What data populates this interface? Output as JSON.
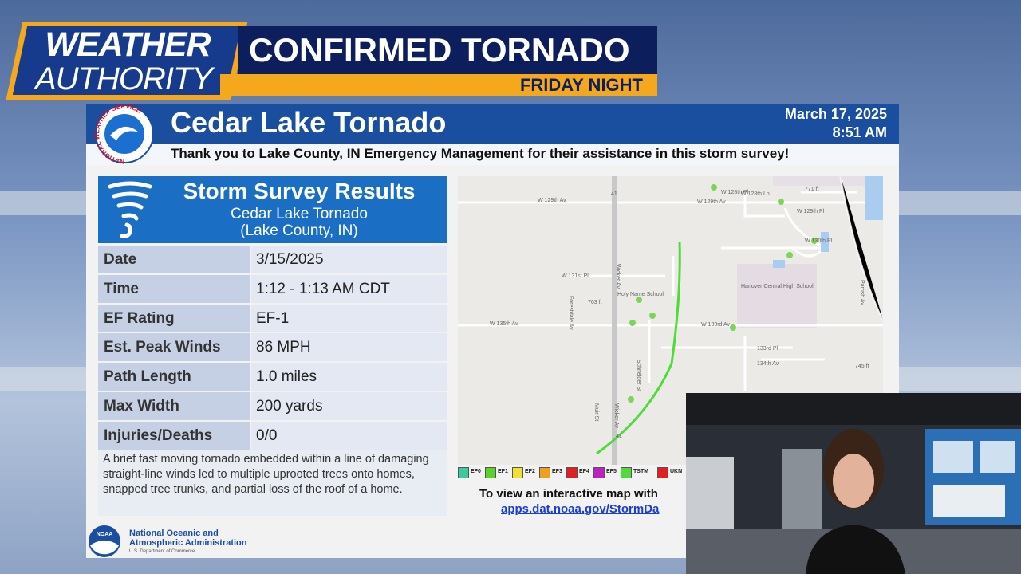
{
  "banner": {
    "brand_top": "WEATHER",
    "brand_bottom": "AUTHORITY",
    "headline": "CONFIRMED TORNADO",
    "subline": "FRIDAY NIGHT"
  },
  "header": {
    "seal": "NATIONAL WEATHER SERVICE",
    "title": "Cedar Lake Tornado",
    "date": "March 17, 2025",
    "time": "8:51 AM",
    "thanks": "Thank you to Lake County, IN Emergency Management for their assistance in this storm survey!"
  },
  "survey": {
    "title": "Storm Survey Results",
    "name": "Cedar Lake Tornado",
    "county": "(Lake County, IN)",
    "rows": [
      [
        "Date",
        "3/15/2025"
      ],
      [
        "Time",
        "1:12 - 1:13 AM CDT"
      ],
      [
        "EF Rating",
        "EF-1"
      ],
      [
        "Est. Peak Winds",
        "86 MPH"
      ],
      [
        "Path Length",
        "1.0 miles"
      ],
      [
        "Max Width",
        "200 yards"
      ],
      [
        "Injuries/Deaths",
        "0/0"
      ]
    ],
    "description": "A brief fast moving tornado embedded within a line of damaging straight-line winds led to multiple uprooted trees onto homes, snapped tree trunks, and partial loss of the roof of a home."
  },
  "map": {
    "labels": [
      "W 128th Pl",
      "W 128th Ln",
      "771 ft",
      "W 129th Av",
      "W 129th Av",
      "W 129th Pl",
      "W 130th Pl",
      "41",
      "W 131st Pl",
      "Holy Name School",
      "763 ft",
      "W 135th Av",
      "W 133rd Av",
      "Hanover Central High School",
      "133rd Pl",
      "134th Av",
      "745 ft",
      "Wicker Av",
      "Forestdale Av",
      "Schneider St",
      "Parrish Av",
      "Muir St",
      "Wicker Av",
      "41"
    ],
    "legend": [
      "EF0",
      "EF1",
      "EF2",
      "EF3",
      "EF4",
      "EF5",
      "TSTM",
      "UKN"
    ],
    "link_text": "To view an interactive map with",
    "link_url": "apps.dat.noaa.gov/StormDa"
  },
  "footer": {
    "org_line1": "National Oceanic and",
    "org_line2": "Atmospheric Administration",
    "dept": "U.S. Department of Commerce",
    "logo": "NOAA"
  }
}
